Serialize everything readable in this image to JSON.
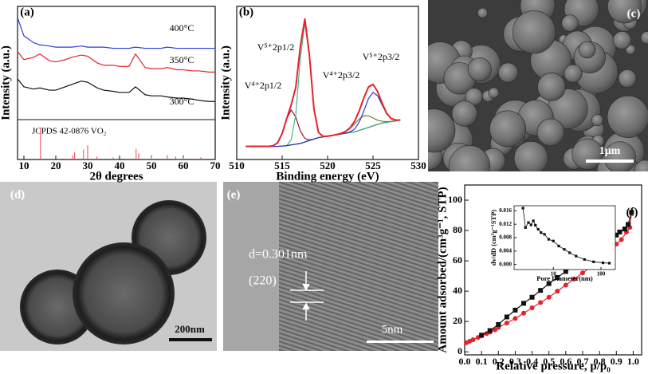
{
  "chart_data": [
    {
      "type": "line",
      "panel_label": "(a)",
      "xlabel": "2θ degrees",
      "ylabel": "Intensity (a.u.)",
      "xlim": [
        8,
        70
      ],
      "xticks": [
        10,
        20,
        30,
        40,
        50,
        60,
        70
      ],
      "ylim": [
        0,
        100
      ],
      "x": [
        8,
        10,
        13,
        15,
        18,
        20,
        23,
        25,
        28,
        30,
        33,
        35,
        38,
        40,
        43,
        45,
        48,
        50,
        53,
        55,
        58,
        60,
        63,
        65,
        68,
        70
      ],
      "series": [
        {
          "name": "400°C",
          "color": "#2b3fd6",
          "values": [
            90,
            74,
            68,
            66,
            65,
            64,
            64,
            64,
            65,
            64,
            64,
            64,
            63,
            63,
            63,
            64,
            63,
            63,
            63,
            64,
            63,
            63,
            63,
            63,
            63,
            63
          ]
        },
        {
          "name": "350°C",
          "color": "#e3242b",
          "values": [
            60,
            53,
            55,
            58,
            52,
            51,
            53,
            55,
            57,
            56,
            50,
            48,
            48,
            47,
            47,
            58,
            46,
            45,
            45,
            46,
            44,
            44,
            43,
            43,
            42,
            42
          ]
        },
        {
          "name": "300°C",
          "color": "#111111",
          "values": [
            36,
            29,
            27,
            28,
            26,
            26,
            29,
            31,
            34,
            33,
            28,
            26,
            25,
            24,
            24,
            29,
            22,
            21,
            21,
            20,
            19,
            19,
            18,
            17,
            16,
            16
          ]
        }
      ],
      "reference": {
        "name": "JCPDS 42-0876 VO₂",
        "color": "#e8485a",
        "x": [
          15.2,
          25.3,
          25.9,
          28.7,
          30.0,
          32.9,
          38.0,
          45.2,
          46.0,
          50.0,
          55.0,
          57.6,
          60.0,
          65.5
        ],
        "values": [
          90,
          12,
          20,
          28,
          40,
          8,
          6,
          30,
          18,
          8,
          12,
          8,
          6,
          6
        ]
      }
    },
    {
      "type": "line",
      "panel_label": "(b)",
      "xlabel": "Binding energy (eV)",
      "ylabel": "Intensity (a.u.)",
      "xlim": [
        510,
        530
      ],
      "xticks": [
        510,
        515,
        520,
        525,
        530
      ],
      "ylim": [
        0,
        105
      ],
      "x": [
        511,
        511.5,
        512,
        512.5,
        513,
        513.5,
        514,
        514.5,
        515,
        515.5,
        516,
        516.5,
        517,
        517.5,
        518,
        518.5,
        519,
        519.5,
        520,
        520.5,
        521,
        521.5,
        522,
        522.5,
        523,
        523.5,
        524,
        524.5,
        525,
        525.5,
        526,
        526.5,
        527,
        527.5,
        528
      ],
      "series": [
        {
          "color": "#1a2fd0",
          "values": [
            9,
            9,
            9,
            9,
            9,
            9,
            9,
            9,
            9.2,
            9.5,
            10,
            10.5,
            11,
            12,
            13,
            14,
            15,
            15.5,
            16,
            16.5,
            17,
            17.5,
            18,
            18.5,
            19,
            20,
            21,
            22,
            23,
            24,
            25,
            25.5,
            26,
            26.5,
            27
          ]
        },
        {
          "name": "V⁴⁺2p1/2",
          "color": "#8b1a3a",
          "values": [
            9,
            9,
            9,
            9,
            9,
            9,
            9.4,
            11.4,
            17.8,
            28,
            34,
            29,
            19.6,
            14.4,
            13.4,
            14,
            15,
            15.5,
            16,
            16.5,
            17,
            17.5,
            18,
            18.5,
            19,
            20,
            21,
            22,
            23,
            24,
            25,
            25.5,
            26,
            26.5,
            27
          ]
        },
        {
          "name": "V⁵⁺2p1/2",
          "color": "#3dbb8a",
          "values": [
            9,
            9,
            9,
            9,
            9,
            9,
            9,
            9,
            9.2,
            9.5,
            13.6,
            31,
            69,
            94,
            71,
            34.5,
            18.6,
            15.8,
            16,
            16.5,
            17,
            17.5,
            18,
            18.5,
            19,
            20,
            21,
            22,
            23,
            24,
            25,
            25.5,
            26,
            26.5,
            27
          ]
        },
        {
          "name": "V⁴⁺2p3/2",
          "color": "#7d7a2a",
          "values": [
            9,
            9,
            9,
            9,
            9,
            9,
            9,
            9,
            9.2,
            9.5,
            10,
            10.5,
            11,
            12,
            13,
            14,
            15,
            15.5,
            16,
            16.5,
            17.1,
            17.9,
            19.2,
            21.4,
            24.5,
            27.9,
            30,
            29.9,
            28.5,
            26.9,
            26.2,
            25.9,
            26.1,
            26.5,
            27
          ]
        },
        {
          "name": "V⁵⁺2p3/2",
          "color": "#2438c8",
          "values": [
            9,
            9,
            9,
            9,
            9,
            9,
            9,
            9,
            9.2,
            9.5,
            10,
            10.5,
            11,
            12,
            13,
            14,
            15,
            15.5,
            16,
            16.5,
            17,
            17.5,
            18.1,
            19,
            21,
            25.8,
            33.4,
            41.8,
            46,
            43.8,
            37.4,
            31.3,
            28,
            27,
            27.1
          ]
        },
        {
          "color": "#e8212b",
          "values": [
            9,
            9,
            9,
            9,
            9,
            9,
            9.4,
            11.4,
            17.8,
            28,
            37.6,
            49.5,
            77.6,
            96.4,
            71.4,
            34.5,
            18.6,
            15.8,
            16,
            16.5,
            17.1,
            17.9,
            19.3,
            21.9,
            26.5,
            33.7,
            42.4,
            49.7,
            51.5,
            46.7,
            38.6,
            31.7,
            28.1,
            27,
            27.1
          ]
        }
      ]
    },
    {
      "type": "line",
      "panel_label": "(f)",
      "xlabel": "Relative pressure, p/p₀",
      "ylabel": "Amount adsorbed/(cm³g⁻¹, STP)",
      "xlim": [
        0,
        1.05
      ],
      "xticks": [
        {
          "value": 0,
          "label": "0.0"
        },
        {
          "value": 0.1,
          "label": "0.1"
        },
        {
          "value": 0.2,
          "label": "0.2"
        },
        {
          "value": 0.3,
          "label": "0.3"
        },
        {
          "value": 0.4,
          "label": "0.4"
        },
        {
          "value": 0.5,
          "label": "0.5"
        },
        {
          "value": 0.6,
          "label": "0.6"
        },
        {
          "value": 0.7,
          "label": "0.7"
        },
        {
          "value": 0.8,
          "label": "0.8"
        },
        {
          "value": 0.9,
          "label": "0.9"
        },
        {
          "value": 1,
          "label": "1.0"
        }
      ],
      "ylim": [
        -2,
        110
      ],
      "yticks": [
        0,
        20,
        40,
        60,
        80,
        100
      ],
      "series": [
        {
          "color": "#e3242b",
          "marker": "circle",
          "x": [
            0.01,
            0.03,
            0.05,
            0.08,
            0.1,
            0.13,
            0.15,
            0.18,
            0.2,
            0.25,
            0.3,
            0.35,
            0.4,
            0.45,
            0.5,
            0.55,
            0.6,
            0.65,
            0.7,
            0.75,
            0.8,
            0.85,
            0.9,
            0.93,
            0.96,
            0.98,
            0.99
          ],
          "values": [
            6,
            7,
            8,
            9.5,
            10.5,
            12,
            13,
            14.5,
            16,
            19,
            22,
            25.5,
            29,
            32.5,
            36,
            40,
            44,
            48,
            52,
            56,
            61,
            66,
            71,
            74,
            79,
            82,
            92
          ]
        },
        {
          "color": "#111111",
          "marker": "square",
          "x": [
            0.99,
            0.97,
            0.95,
            0.92,
            0.9,
            0.85,
            0.8,
            0.75,
            0.7,
            0.65,
            0.6,
            0.55,
            0.5,
            0.45,
            0.4,
            0.35,
            0.3,
            0.25,
            0.2,
            0.15,
            0.1
          ],
          "values": [
            92,
            84,
            81,
            79,
            77,
            73,
            69,
            65,
            61,
            57,
            53,
            49,
            45,
            40.5,
            36,
            32,
            27.5,
            23,
            18,
            14,
            11
          ]
        }
      ]
    },
    {
      "type": "line",
      "xlabel": "Pore Diameter(nm)",
      "ylabel": "dv/dD (cm³g⁻¹STP)",
      "xscale": "log",
      "xlim": [
        1.5,
        200
      ],
      "xticks": [
        10,
        100
      ],
      "ylim": [
        -0.0015,
        0.0175
      ],
      "yticks": [
        {
          "value": 0,
          "label": "0.000"
        },
        {
          "value": 0.004,
          "label": "0.004"
        },
        {
          "value": 0.008,
          "label": "0.008"
        },
        {
          "value": 0.012,
          "label": "0.012"
        },
        {
          "value": 0.016,
          "label": "0.016"
        }
      ],
      "x": [
        2.3,
        2.6,
        3,
        3.4,
        3.8,
        4.2,
        4.8,
        5.5,
        6.5,
        8,
        10,
        13,
        17,
        22,
        30,
        45,
        70,
        110,
        150
      ],
      "series": [
        {
          "color": "#111111",
          "marker": "square",
          "values": [
            0.0168,
            0.011,
            0.0125,
            0.0118,
            0.013,
            0.0117,
            0.0105,
            0.0095,
            0.009,
            0.0075,
            0.007,
            0.0055,
            0.0045,
            0.0035,
            0.0025,
            0.0015,
            0.0008,
            0.0005,
            0.0004
          ]
        }
      ]
    }
  ],
  "images": [
    {
      "label": "(c)",
      "scale_bar": "1μm"
    },
    {
      "label": "(d)",
      "scale_bar": "200nm"
    },
    {
      "label": "(e)",
      "annotations": [
        "d=0.301nm",
        "(220)"
      ],
      "scale_bar": "5nm"
    }
  ]
}
